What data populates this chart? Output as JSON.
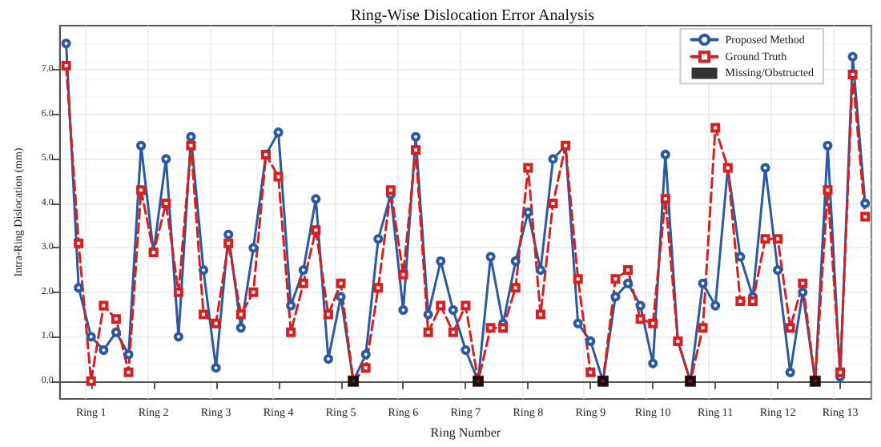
{
  "chart_data": {
    "type": "line",
    "title": "Ring-Wise Dislocation Error Analysis",
    "xlabel": "Ring Number",
    "ylabel": "Intra-Ring Dislocation (mm)",
    "categories": [
      null,
      null,
      "Ring 1",
      null,
      null,
      null,
      null,
      "Ring 2",
      null,
      null,
      null,
      null,
      "Ring 3",
      null,
      null,
      null,
      null,
      "Ring 4",
      null,
      null,
      null,
      null,
      "Ring 5",
      null,
      null,
      null,
      null,
      "Ring 6",
      null,
      null,
      null,
      null,
      "Ring 7",
      null,
      null,
      null,
      null,
      "Ring 8",
      null,
      null,
      null,
      null,
      "Ring 9",
      null,
      null,
      null,
      null,
      "Ring 10",
      null,
      null,
      null,
      null,
      "Ring 11",
      null,
      null,
      null,
      null,
      "Ring 12",
      null,
      null,
      null,
      null,
      "Ring 13",
      null,
      null
    ],
    "series": [
      {
        "name": "Proposed Method",
        "type": "line",
        "color": "#2c5aa0",
        "marker": "circle",
        "line_style": "solid",
        "values": [
          7.6,
          2.1,
          1.0,
          0.7,
          1.1,
          0.6,
          5.3,
          2.9,
          5.0,
          1.0,
          5.5,
          2.5,
          0.3,
          3.3,
          1.2,
          3.0,
          5.1,
          5.6,
          1.7,
          2.5,
          4.1,
          0.5,
          1.9,
          0,
          0.6,
          3.2,
          4.2,
          1.6,
          5.5,
          1.5,
          2.7,
          1.6,
          0.7,
          0,
          2.8,
          1.3,
          2.7,
          3.8,
          2.5,
          5.0,
          5.3,
          1.3,
          0.9,
          0,
          1.9,
          2.2,
          1.7,
          0.4,
          5.1,
          0.9,
          0,
          2.2,
          1.7,
          4.8,
          2.8,
          1.9,
          4.8,
          2.5,
          0.2,
          2.0,
          0,
          5.3,
          0.1,
          7.3,
          4.0
        ]
      },
      {
        "name": "Ground Truth",
        "type": "line",
        "color": "#d62020",
        "marker": "square",
        "line_style": "dashed",
        "values": [
          7.1,
          3.1,
          0.0,
          1.7,
          1.4,
          0.2,
          4.3,
          2.9,
          4.0,
          2.0,
          5.3,
          1.5,
          1.3,
          3.1,
          1.5,
          2.0,
          5.1,
          4.6,
          1.1,
          2.2,
          3.4,
          1.5,
          2.2,
          0,
          0.3,
          2.1,
          4.3,
          2.4,
          5.2,
          1.1,
          1.7,
          1.1,
          1.7,
          0,
          1.2,
          1.2,
          2.1,
          4.8,
          1.5,
          4.0,
          5.3,
          2.3,
          0.2,
          0,
          2.3,
          2.5,
          1.4,
          1.3,
          4.1,
          0.9,
          0,
          1.2,
          5.7,
          4.8,
          1.8,
          1.8,
          3.2,
          3.2,
          1.2,
          2.2,
          0,
          4.3,
          0.2,
          6.9,
          3.7
        ]
      },
      {
        "name": "Missing/Obstructed",
        "type": "scatter",
        "color": "#000000",
        "marker": "square",
        "values": [
          null,
          null,
          null,
          null,
          null,
          null,
          null,
          null,
          null,
          null,
          null,
          null,
          null,
          null,
          null,
          null,
          null,
          null,
          null,
          null,
          null,
          null,
          null,
          0,
          null,
          null,
          null,
          null,
          null,
          null,
          null,
          null,
          null,
          0,
          null,
          null,
          null,
          null,
          null,
          null,
          null,
          null,
          null,
          0,
          null,
          null,
          null,
          null,
          null,
          null,
          0,
          null,
          null,
          null,
          null,
          null,
          null,
          null,
          null,
          null,
          0,
          null,
          null,
          null,
          null
        ]
      }
    ],
    "ylim": [
      -0.4,
      8.0
    ],
    "yticks": [
      {
        "value": 0,
        "label": "0.0"
      },
      {
        "value": 1,
        "label": "1.0"
      },
      {
        "value": 2,
        "label": "2.0"
      },
      {
        "value": 3,
        "label": "3.0"
      },
      {
        "value": 4,
        "label": "4.0"
      },
      {
        "value": 5,
        "label": "5.0"
      },
      {
        "value": 6,
        "label": "6.0"
      },
      {
        "value": 7,
        "label": "7.0"
      }
    ],
    "grid": true,
    "legend": "top right"
  }
}
